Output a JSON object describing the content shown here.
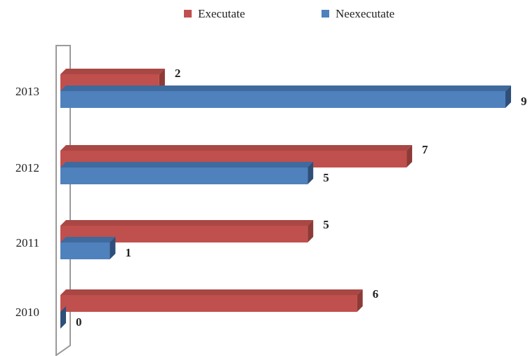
{
  "chart_data": {
    "type": "bar",
    "orientation": "horizontal",
    "categories": [
      "2010",
      "2011",
      "2012",
      "2013"
    ],
    "series": [
      {
        "name": "Executate",
        "values": [
          6,
          5,
          7,
          2
        ],
        "color": "#C0504D",
        "shade": "#8E3A37",
        "top": "#A94744"
      },
      {
        "name": "Neexecutate",
        "values": [
          0,
          1,
          5,
          9
        ],
        "color": "#4F81BD",
        "shade": "#2F4F7A",
        "top": "#3F6A9E"
      }
    ],
    "title": "",
    "xlabel": "",
    "ylabel": "",
    "xlim": [
      0,
      9
    ],
    "grid": false,
    "legend": "top-center",
    "data_labels": true,
    "effect": "3d"
  }
}
